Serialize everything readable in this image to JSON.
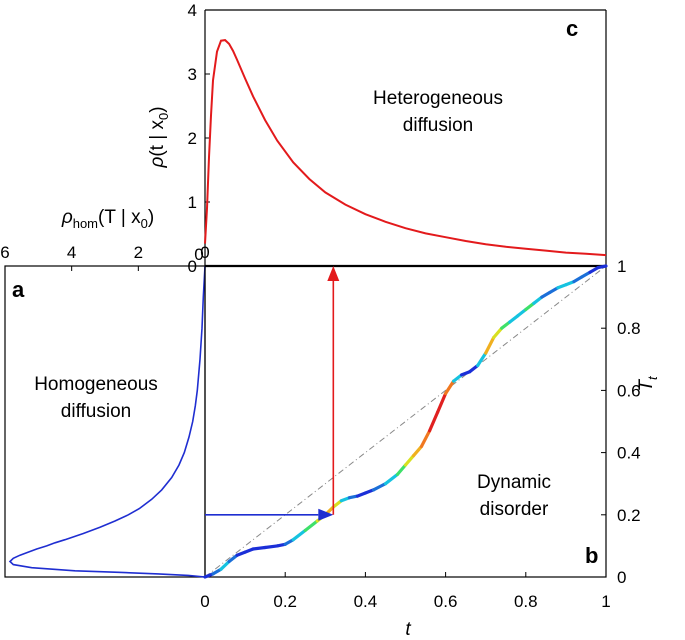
{
  "chart_data": [
    {
      "panel": "c",
      "type": "line",
      "annotation": "Heterogeneous diffusion",
      "ylabel": "ρ(t|x0)",
      "xlim": [
        0,
        1
      ],
      "ylim": [
        0,
        4
      ],
      "yticks": [
        "0",
        "1",
        "2",
        "3",
        "4"
      ],
      "grid": false,
      "series": [
        {
          "color": "#e31a1c",
          "x": [
            0.0,
            0.005,
            0.01,
            0.015,
            0.02,
            0.03,
            0.04,
            0.05,
            0.06,
            0.07,
            0.08,
            0.1,
            0.12,
            0.15,
            0.18,
            0.22,
            0.26,
            0.3,
            0.35,
            0.4,
            0.45,
            0.5,
            0.55,
            0.6,
            0.65,
            0.7,
            0.75,
            0.8,
            0.85,
            0.9,
            0.95,
            1.0
          ],
          "y": [
            0.35,
            0.9,
            1.7,
            2.35,
            2.9,
            3.35,
            3.52,
            3.53,
            3.47,
            3.36,
            3.22,
            2.93,
            2.65,
            2.28,
            1.96,
            1.62,
            1.36,
            1.15,
            0.96,
            0.81,
            0.69,
            0.59,
            0.51,
            0.45,
            0.39,
            0.34,
            0.3,
            0.27,
            0.24,
            0.21,
            0.19,
            0.17
          ]
        }
      ]
    },
    {
      "panel": "a",
      "type": "line",
      "annotation": "Homogeneous diffusion",
      "top_axis_label": "ρhom(T|x0)",
      "top_ticks": [
        "6",
        "4",
        "2",
        "0"
      ],
      "xlim": [
        6,
        0
      ],
      "ylim": [
        0,
        1
      ],
      "grid": false,
      "series": [
        {
          "color": "#1f2ed1",
          "T": [
            0.0,
            0.005,
            0.01,
            0.015,
            0.02,
            0.03,
            0.04,
            0.05,
            0.06,
            0.07,
            0.08,
            0.09,
            0.1,
            0.11,
            0.12,
            0.14,
            0.16,
            0.18,
            0.2,
            0.22,
            0.25,
            0.28,
            0.32,
            0.36,
            0.4,
            0.45,
            0.5,
            0.55,
            0.6,
            0.7,
            0.8,
            0.9,
            1.0
          ],
          "rho": [
            0.0,
            0.5,
            1.4,
            2.6,
            3.9,
            5.2,
            5.75,
            5.85,
            5.75,
            5.55,
            5.3,
            5.05,
            4.75,
            4.5,
            4.2,
            3.65,
            3.15,
            2.7,
            2.3,
            1.97,
            1.6,
            1.3,
            1.0,
            0.78,
            0.62,
            0.48,
            0.37,
            0.29,
            0.23,
            0.15,
            0.09,
            0.05,
            0.0
          ]
        }
      ]
    },
    {
      "panel": "b",
      "type": "line",
      "annotation": "Dynamic disorder",
      "xlabel": "t",
      "ylabel": "Tt",
      "xlim": [
        0,
        1
      ],
      "ylim": [
        0,
        1
      ],
      "xticks": [
        "0",
        "0.2",
        "0.4",
        "0.6",
        "0.8",
        "1"
      ],
      "yticks": [
        "0",
        "0.2",
        "0.4",
        "0.6",
        "0.8",
        "1"
      ],
      "grid": false,
      "series": [
        {
          "style": "dash-dot diagonal",
          "color": "#888888",
          "x": [
            0,
            1
          ],
          "y": [
            0,
            1
          ]
        },
        {
          "style": "color-coded by local slope",
          "x": [
            0.0,
            0.02,
            0.04,
            0.06,
            0.08,
            0.1,
            0.12,
            0.15,
            0.18,
            0.2,
            0.22,
            0.25,
            0.28,
            0.3,
            0.32,
            0.34,
            0.36,
            0.38,
            0.4,
            0.42,
            0.45,
            0.48,
            0.5,
            0.52,
            0.54,
            0.56,
            0.58,
            0.6,
            0.62,
            0.64,
            0.66,
            0.68,
            0.7,
            0.72,
            0.74,
            0.76,
            0.78,
            0.8,
            0.82,
            0.84,
            0.86,
            0.88,
            0.9,
            0.92,
            0.94,
            0.96,
            0.98,
            1.0
          ],
          "y": [
            0.0,
            0.01,
            0.025,
            0.05,
            0.07,
            0.08,
            0.09,
            0.095,
            0.1,
            0.105,
            0.12,
            0.15,
            0.18,
            0.2,
            0.225,
            0.245,
            0.255,
            0.26,
            0.27,
            0.28,
            0.3,
            0.33,
            0.36,
            0.39,
            0.42,
            0.47,
            0.53,
            0.59,
            0.63,
            0.65,
            0.66,
            0.68,
            0.72,
            0.77,
            0.8,
            0.82,
            0.84,
            0.86,
            0.88,
            0.9,
            0.915,
            0.93,
            0.94,
            0.95,
            0.965,
            0.98,
            0.995,
            1.0
          ],
          "colors": [
            "#1b2fd8",
            "#1b6fd8",
            "#16c3e0",
            "#1b6fd8",
            "#1b2fd8",
            "#1b2fd8",
            "#1b2fd8",
            "#1b2fd8",
            "#1b2fd8",
            "#1b6fd8",
            "#16c3e0",
            "#3ee06a",
            "#d8e020",
            "#f0b020",
            "#d8e020",
            "#16c3e0",
            "#1b6fd8",
            "#1b2fd8",
            "#1b2fd8",
            "#1b6fd8",
            "#16c3e0",
            "#3ee06a",
            "#d8e020",
            "#f0b020",
            "#f07820",
            "#e02020",
            "#e02020",
            "#f07820",
            "#16c3e0",
            "#1b2fd8",
            "#1b2fd8",
            "#16c3e0",
            "#f0b020",
            "#d8e020",
            "#3ee06a",
            "#16c3e0",
            "#16c3e0",
            "#3ee06a",
            "#16c3e0",
            "#1b6fd8",
            "#1b6fd8",
            "#16c3e0",
            "#16c3e0",
            "#1b6fd8",
            "#1b6fd8",
            "#1b2fd8",
            "#1b2fd8"
          ]
        }
      ],
      "arrows": [
        {
          "color": "#1f2ed1",
          "from": {
            "t": 0.0,
            "T": 0.2
          },
          "to": {
            "t": 0.32,
            "T": 0.2
          }
        },
        {
          "color": "#e31a1c",
          "from": {
            "t": 0.32,
            "T": 0.2
          },
          "to": {
            "t": 0.32,
            "T": 1.0
          }
        }
      ]
    }
  ],
  "labels": {
    "panel_c": "c",
    "panel_a": "a",
    "panel_b": "b",
    "hetero_line1": "Heterogeneous",
    "hetero_line2": "diffusion",
    "homo_line1": "Homogeneous",
    "homo_line2": "diffusion",
    "dyn_line1": "Dynamic",
    "dyn_line2": "disorder",
    "c_xtick0": "0",
    "c_ylabel_rho": "ρ",
    "c_ylabel_args": "(t | x",
    "c_ylabel_sub": "0",
    "c_ylabel_close": ")",
    "a_toplabel_rho": "ρ",
    "a_toplabel_hom": "hom",
    "a_toplabel_args": "(T | x",
    "a_toplabel_sub": "0",
    "a_toplabel_close": ")",
    "b_xlabel": "t",
    "b_ylabel_T": "T",
    "b_ylabel_sub": "t"
  }
}
